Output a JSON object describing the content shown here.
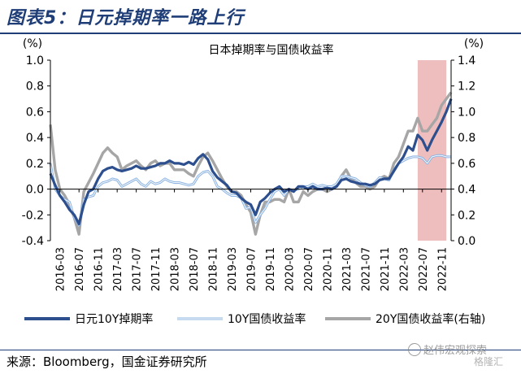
{
  "figure": {
    "title": "图表5：日元掉期率一路上行",
    "source": "来源：Bloomberg，国金证券研究所",
    "watermark": "赵伟宏观探索",
    "watermark2": "格隆汇"
  },
  "chart_data": {
    "type": "line",
    "title": "日本掉期率与国债收益率",
    "left_axis_unit": "(%)",
    "right_axis_unit": "(%)",
    "ylim_left": [
      -0.4,
      1.0
    ],
    "ylim_right": [
      0.0,
      1.4
    ],
    "yticks_left": [
      "-0.4",
      "-0.2",
      "0.0",
      "0.2",
      "0.4",
      "0.6",
      "0.8",
      "1.0"
    ],
    "yticks_right": [
      "0.0",
      "0.2",
      "0.4",
      "0.6",
      "0.8",
      "1.0",
      "1.2",
      "1.4"
    ],
    "xtick_labels": [
      "2016-03",
      "2016-07",
      "2016-11",
      "2017-03",
      "2017-07",
      "2017-11",
      "2018-03",
      "2018-07",
      "2018-11",
      "2019-03",
      "2019-07",
      "2019-11",
      "2020-03",
      "2020-07",
      "2020-11",
      "2021-03",
      "2021-07",
      "2021-11",
      "2022-03",
      "2022-07",
      "2022-11"
    ],
    "highlight": {
      "start": "2022-06",
      "end": "2022-12",
      "color": "#e8a8a8"
    },
    "legend_position": "bottom",
    "grid": false,
    "series": [
      {
        "name": "日元10Y掉期率",
        "axis": "left",
        "color": "#2d4f8e",
        "x": [
          "2016-01",
          "2016-02",
          "2016-03",
          "2016-04",
          "2016-05",
          "2016-06",
          "2016-07",
          "2016-08",
          "2016-09",
          "2016-10",
          "2016-11",
          "2016-12",
          "2017-01",
          "2017-02",
          "2017-03",
          "2017-04",
          "2017-05",
          "2017-06",
          "2017-07",
          "2017-08",
          "2017-09",
          "2017-10",
          "2017-11",
          "2017-12",
          "2018-01",
          "2018-02",
          "2018-03",
          "2018-04",
          "2018-05",
          "2018-06",
          "2018-07",
          "2018-08",
          "2018-09",
          "2018-10",
          "2018-11",
          "2018-12",
          "2019-01",
          "2019-02",
          "2019-03",
          "2019-04",
          "2019-05",
          "2019-06",
          "2019-07",
          "2019-08",
          "2019-09",
          "2019-10",
          "2019-11",
          "2019-12",
          "2020-01",
          "2020-02",
          "2020-03",
          "2020-04",
          "2020-05",
          "2020-06",
          "2020-07",
          "2020-08",
          "2020-09",
          "2020-10",
          "2020-11",
          "2020-12",
          "2021-01",
          "2021-02",
          "2021-03",
          "2021-04",
          "2021-05",
          "2021-06",
          "2021-07",
          "2021-08",
          "2021-09",
          "2021-10",
          "2021-11",
          "2021-12",
          "2022-01",
          "2022-02",
          "2022-03",
          "2022-04",
          "2022-05",
          "2022-06",
          "2022-07",
          "2022-08",
          "2022-09",
          "2022-10",
          "2022-11",
          "2022-12",
          "2023-01"
        ],
        "values": [
          0.12,
          0.03,
          -0.05,
          -0.1,
          -0.16,
          -0.2,
          -0.27,
          -0.12,
          -0.02,
          0.0,
          0.08,
          0.14,
          0.16,
          0.17,
          0.15,
          0.14,
          0.15,
          0.16,
          0.18,
          0.16,
          0.16,
          0.17,
          0.18,
          0.2,
          0.2,
          0.22,
          0.2,
          0.2,
          0.19,
          0.21,
          0.19,
          0.24,
          0.27,
          0.23,
          0.14,
          0.09,
          0.06,
          0.03,
          -0.02,
          -0.03,
          -0.07,
          -0.1,
          -0.12,
          -0.2,
          -0.1,
          -0.07,
          -0.03,
          0.0,
          0.02,
          -0.02,
          0.0,
          -0.02,
          0.02,
          0.02,
          0.0,
          0.02,
          0.0,
          0.0,
          0.01,
          0.0,
          0.02,
          0.07,
          0.08,
          0.06,
          0.05,
          0.04,
          0.04,
          0.03,
          0.04,
          0.07,
          0.08,
          0.08,
          0.14,
          0.2,
          0.25,
          0.33,
          0.3,
          0.42,
          0.38,
          0.3,
          0.38,
          0.45,
          0.52,
          0.6,
          0.7
        ]
      },
      {
        "name": "10Y国债收益率",
        "axis": "left",
        "color": "#8db4e2",
        "x": [
          "2016-01",
          "2016-02",
          "2016-03",
          "2016-04",
          "2016-05",
          "2016-06",
          "2016-07",
          "2016-08",
          "2016-09",
          "2016-10",
          "2016-11",
          "2016-12",
          "2017-01",
          "2017-02",
          "2017-03",
          "2017-04",
          "2017-05",
          "2017-06",
          "2017-07",
          "2017-08",
          "2017-09",
          "2017-10",
          "2017-11",
          "2017-12",
          "2018-01",
          "2018-02",
          "2018-03",
          "2018-04",
          "2018-05",
          "2018-06",
          "2018-07",
          "2018-08",
          "2018-09",
          "2018-10",
          "2018-11",
          "2018-12",
          "2019-01",
          "2019-02",
          "2019-03",
          "2019-04",
          "2019-05",
          "2019-06",
          "2019-07",
          "2019-08",
          "2019-09",
          "2019-10",
          "2019-11",
          "2019-12",
          "2020-01",
          "2020-02",
          "2020-03",
          "2020-04",
          "2020-05",
          "2020-06",
          "2020-07",
          "2020-08",
          "2020-09",
          "2020-10",
          "2020-11",
          "2020-12",
          "2021-01",
          "2021-02",
          "2021-03",
          "2021-04",
          "2021-05",
          "2021-06",
          "2021-07",
          "2021-08",
          "2021-09",
          "2021-10",
          "2021-11",
          "2021-12",
          "2022-01",
          "2022-02",
          "2022-03",
          "2022-04",
          "2022-05",
          "2022-06",
          "2022-07",
          "2022-08",
          "2022-09",
          "2022-10",
          "2022-11",
          "2022-12",
          "2023-01"
        ],
        "values": [
          0.2,
          0.0,
          -0.05,
          -0.08,
          -0.1,
          -0.22,
          -0.28,
          -0.08,
          -0.06,
          -0.05,
          0.02,
          0.05,
          0.06,
          0.08,
          0.07,
          0.02,
          0.04,
          0.06,
          0.08,
          0.04,
          0.02,
          0.06,
          0.04,
          0.05,
          0.08,
          0.06,
          0.05,
          0.05,
          0.04,
          0.03,
          0.04,
          0.1,
          0.13,
          0.14,
          0.1,
          0.02,
          0.0,
          -0.03,
          -0.05,
          -0.05,
          -0.07,
          -0.15,
          -0.14,
          -0.26,
          -0.2,
          -0.15,
          -0.08,
          -0.02,
          0.0,
          -0.05,
          0.0,
          -0.01,
          0.0,
          0.02,
          0.02,
          0.04,
          0.02,
          0.03,
          0.02,
          0.02,
          0.04,
          0.1,
          0.1,
          0.09,
          0.08,
          0.05,
          0.03,
          0.02,
          0.05,
          0.09,
          0.08,
          0.07,
          0.15,
          0.2,
          0.22,
          0.24,
          0.25,
          0.25,
          0.24,
          0.2,
          0.25,
          0.26,
          0.26,
          0.25,
          0.25
        ]
      },
      {
        "name": "20Y国债收益率(右轴)",
        "axis": "right",
        "color": "#a6a6a6",
        "x": [
          "2016-01",
          "2016-02",
          "2016-03",
          "2016-04",
          "2016-05",
          "2016-06",
          "2016-07",
          "2016-08",
          "2016-09",
          "2016-10",
          "2016-11",
          "2016-12",
          "2017-01",
          "2017-02",
          "2017-03",
          "2017-04",
          "2017-05",
          "2017-06",
          "2017-07",
          "2017-08",
          "2017-09",
          "2017-10",
          "2017-11",
          "2017-12",
          "2018-01",
          "2018-02",
          "2018-03",
          "2018-04",
          "2018-05",
          "2018-06",
          "2018-07",
          "2018-08",
          "2018-09",
          "2018-10",
          "2018-11",
          "2018-12",
          "2019-01",
          "2019-02",
          "2019-03",
          "2019-04",
          "2019-05",
          "2019-06",
          "2019-07",
          "2019-08",
          "2019-09",
          "2019-10",
          "2019-11",
          "2019-12",
          "2020-01",
          "2020-02",
          "2020-03",
          "2020-04",
          "2020-05",
          "2020-06",
          "2020-07",
          "2020-08",
          "2020-09",
          "2020-10",
          "2020-11",
          "2020-12",
          "2021-01",
          "2021-02",
          "2021-03",
          "2021-04",
          "2021-05",
          "2021-06",
          "2021-07",
          "2021-08",
          "2021-09",
          "2021-10",
          "2021-11",
          "2021-12",
          "2022-01",
          "2022-02",
          "2022-03",
          "2022-04",
          "2022-05",
          "2022-06",
          "2022-07",
          "2022-08",
          "2022-09",
          "2022-10",
          "2022-11",
          "2022-12",
          "2023-01"
        ],
        "values": [
          0.9,
          0.55,
          0.4,
          0.35,
          0.28,
          0.18,
          0.05,
          0.38,
          0.45,
          0.52,
          0.6,
          0.68,
          0.72,
          0.68,
          0.65,
          0.55,
          0.58,
          0.6,
          0.62,
          0.58,
          0.55,
          0.6,
          0.62,
          0.58,
          0.6,
          0.6,
          0.55,
          0.55,
          0.55,
          0.52,
          0.5,
          0.58,
          0.65,
          0.68,
          0.62,
          0.55,
          0.48,
          0.42,
          0.38,
          0.38,
          0.35,
          0.28,
          0.22,
          0.05,
          0.2,
          0.3,
          0.3,
          0.32,
          0.32,
          0.3,
          0.4,
          0.3,
          0.3,
          0.38,
          0.35,
          0.38,
          0.4,
          0.4,
          0.38,
          0.4,
          0.42,
          0.5,
          0.55,
          0.48,
          0.45,
          0.42,
          0.42,
          0.4,
          0.42,
          0.48,
          0.5,
          0.48,
          0.6,
          0.65,
          0.75,
          0.85,
          0.85,
          0.95,
          0.85,
          0.85,
          0.9,
          0.95,
          1.05,
          1.1,
          1.15
        ]
      }
    ]
  }
}
